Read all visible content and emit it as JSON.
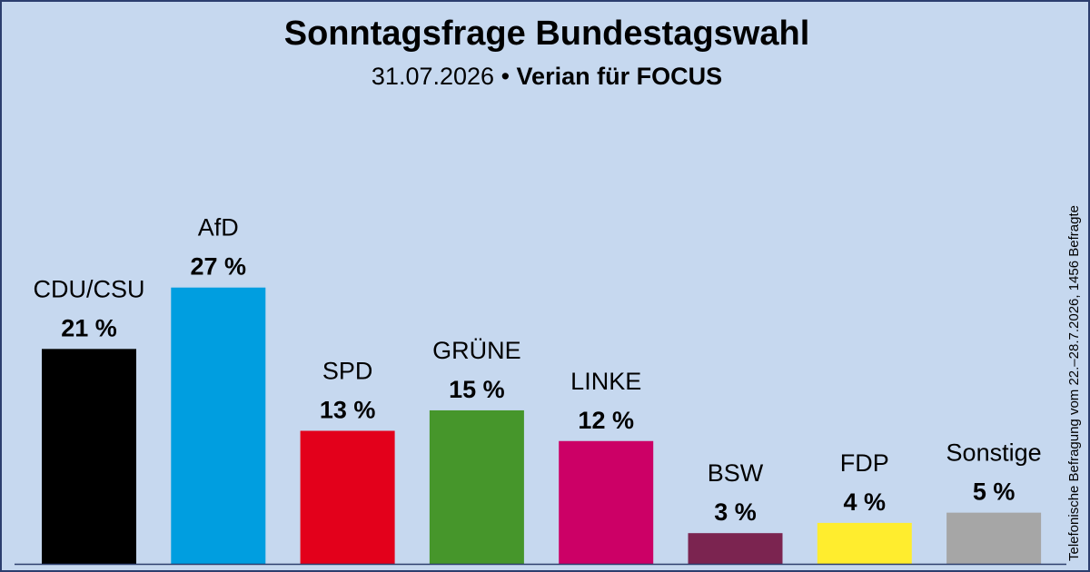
{
  "header": {
    "title": "Sonntagsfrage Bundestagswahl",
    "date": "31.07.2026",
    "separator": "•",
    "source": "Verian für FOCUS"
  },
  "side_note": "Telefonische Befragung vom 22.–28.7.2026, 1456 Befragte",
  "colors": {
    "background": "#c6d8ef",
    "border": "#2c3e6e"
  },
  "chart_data": {
    "type": "bar",
    "title": "Sonntagsfrage Bundestagswahl",
    "subtitle": "31.07.2026 • Verian für FOCUS",
    "xlabel": "",
    "ylabel": "",
    "ylim": [
      0,
      30
    ],
    "grid": false,
    "legend": "none",
    "unit": "%",
    "categories": [
      "CDU/CSU",
      "AfD",
      "SPD",
      "GRÜNE",
      "LINKE",
      "BSW",
      "FDP",
      "Sonstige"
    ],
    "values": [
      21,
      27,
      13,
      15,
      12,
      3,
      4,
      5
    ],
    "value_labels": [
      "21 %",
      "27 %",
      "13 %",
      "15 %",
      "12 %",
      "3 %",
      "4 %",
      "5 %"
    ],
    "colors": [
      "#000000",
      "#009ee0",
      "#e3001b",
      "#46962b",
      "#cc0066",
      "#7b2450",
      "#ffed2e",
      "#a6a6a6"
    ]
  }
}
